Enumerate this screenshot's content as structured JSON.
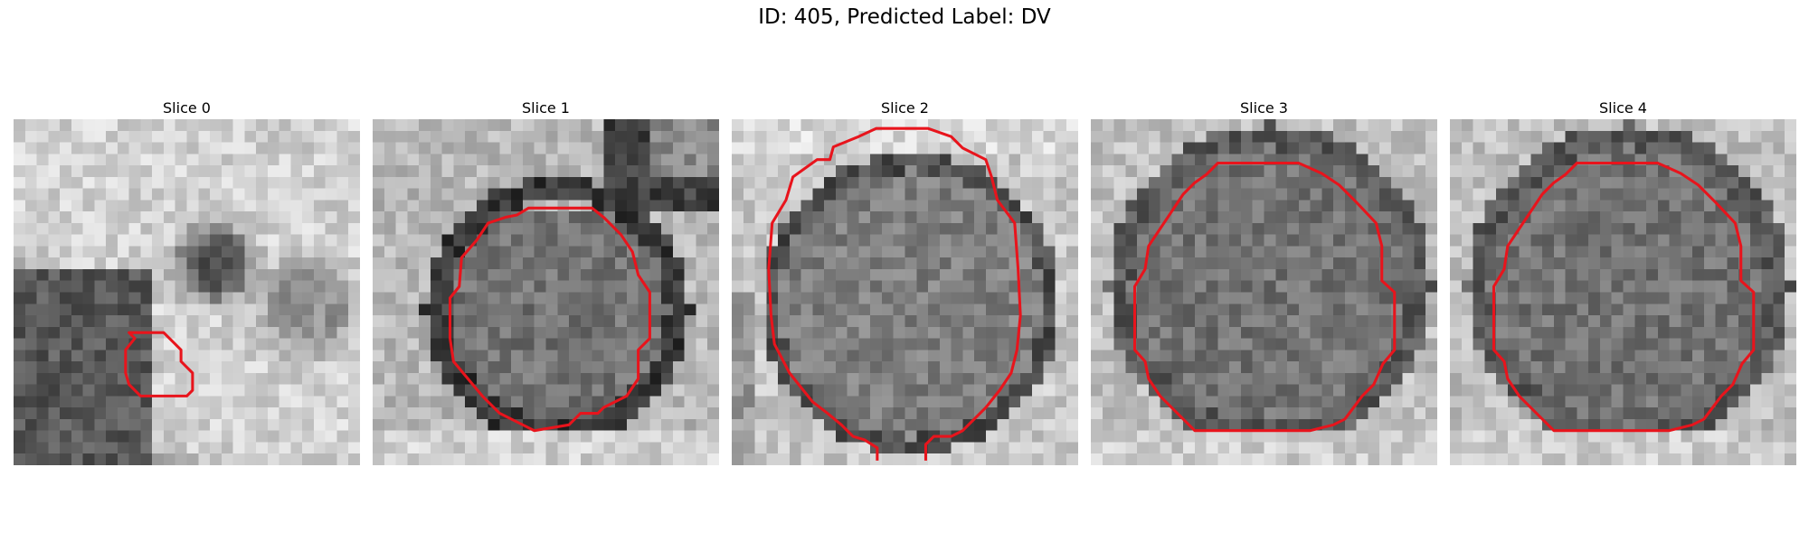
{
  "figure": {
    "title": "ID: 405, Predicted Label: DV"
  },
  "panels": [
    {
      "title": "Slice 0"
    },
    {
      "title": "Slice 1"
    },
    {
      "title": "Slice 2"
    },
    {
      "title": "Slice 3"
    },
    {
      "title": "Slice 4"
    }
  ],
  "colors": {
    "contour": "#e8141c",
    "background": "#ffffff"
  }
}
